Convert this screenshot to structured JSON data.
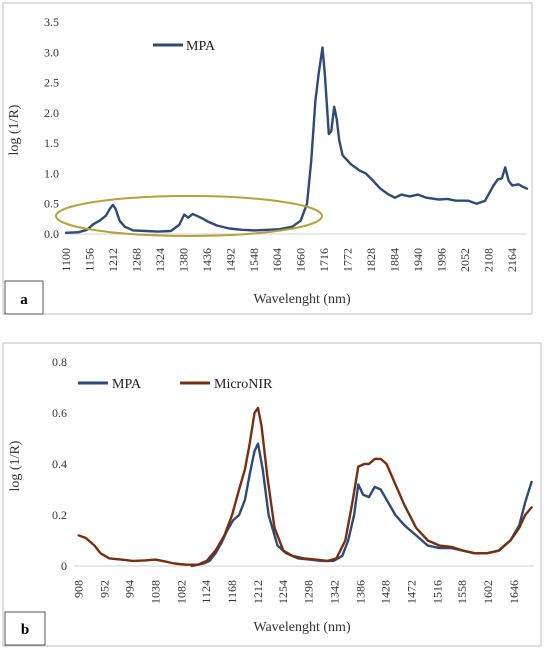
{
  "colors": {
    "mpa": "#2E4A78",
    "micronir": "#7A2E10",
    "ellipse": "#B7A23A",
    "frame": "#BFBFBF",
    "zero_line": "#D0D0D0"
  },
  "chart_data": [
    {
      "panel": "a",
      "type": "line",
      "xlabel": "Wavelenght (nm)",
      "ylabel": "log (1/R)",
      "ylim": [
        0,
        3.5
      ],
      "xlim": [
        1100,
        2200
      ],
      "yticks": [
        "0.0",
        "0.5",
        "1.0",
        "1.5",
        "2.0",
        "2.5",
        "3.0",
        "3.5"
      ],
      "xticks": [
        "1100",
        "1156",
        "1212",
        "1268",
        "1324",
        "1380",
        "1436",
        "1492",
        "1548",
        "1604",
        "1660",
        "1716",
        "1772",
        "1828",
        "1884",
        "1940",
        "1996",
        "2052",
        "2108",
        "2164"
      ],
      "legend": "top-left",
      "series": [
        {
          "name": "MPA",
          "color": "#2E4A78",
          "points": [
            [
              1100,
              0.02
            ],
            [
              1130,
              0.03
            ],
            [
              1150,
              0.07
            ],
            [
              1165,
              0.16
            ],
            [
              1180,
              0.22
            ],
            [
              1195,
              0.3
            ],
            [
              1205,
              0.42
            ],
            [
              1212,
              0.48
            ],
            [
              1218,
              0.42
            ],
            [
              1228,
              0.22
            ],
            [
              1240,
              0.12
            ],
            [
              1260,
              0.06
            ],
            [
              1290,
              0.05
            ],
            [
              1320,
              0.04
            ],
            [
              1350,
              0.05
            ],
            [
              1370,
              0.15
            ],
            [
              1382,
              0.32
            ],
            [
              1392,
              0.27
            ],
            [
              1402,
              0.33
            ],
            [
              1412,
              0.3
            ],
            [
              1425,
              0.26
            ],
            [
              1440,
              0.2
            ],
            [
              1460,
              0.14
            ],
            [
              1490,
              0.09
            ],
            [
              1520,
              0.07
            ],
            [
              1550,
              0.06
            ],
            [
              1580,
              0.07
            ],
            [
              1610,
              0.08
            ],
            [
              1640,
              0.12
            ],
            [
              1660,
              0.22
            ],
            [
              1675,
              0.5
            ],
            [
              1685,
              1.2
            ],
            [
              1695,
              2.2
            ],
            [
              1703,
              2.65
            ],
            [
              1712,
              3.08
            ],
            [
              1718,
              2.6
            ],
            [
              1727,
              1.65
            ],
            [
              1733,
              1.7
            ],
            [
              1740,
              2.1
            ],
            [
              1746,
              1.9
            ],
            [
              1752,
              1.55
            ],
            [
              1760,
              1.3
            ],
            [
              1780,
              1.15
            ],
            [
              1800,
              1.05
            ],
            [
              1815,
              1.0
            ],
            [
              1830,
              0.9
            ],
            [
              1850,
              0.75
            ],
            [
              1870,
              0.65
            ],
            [
              1885,
              0.6
            ],
            [
              1900,
              0.65
            ],
            [
              1920,
              0.62
            ],
            [
              1940,
              0.65
            ],
            [
              1960,
              0.6
            ],
            [
              1990,
              0.57
            ],
            [
              2010,
              0.58
            ],
            [
              2030,
              0.55
            ],
            [
              2060,
              0.55
            ],
            [
              2080,
              0.5
            ],
            [
              2100,
              0.55
            ],
            [
              2120,
              0.8
            ],
            [
              2130,
              0.9
            ],
            [
              2140,
              0.92
            ],
            [
              2148,
              1.1
            ],
            [
              2156,
              0.88
            ],
            [
              2165,
              0.8
            ],
            [
              2180,
              0.82
            ],
            [
              2190,
              0.78
            ],
            [
              2200,
              0.75
            ]
          ]
        }
      ]
    },
    {
      "panel": "b",
      "type": "line",
      "xlabel": "Wavelenght (nm)",
      "ylabel": "log (1/R)",
      "ylim": [
        0,
        0.8
      ],
      "xlim": [
        900,
        1680
      ],
      "yticks": [
        "0",
        "0.2",
        "0.4",
        "0.6",
        "0.8"
      ],
      "xticks": [
        "908",
        "952",
        "994",
        "1038",
        "1082",
        "1124",
        "1168",
        "1212",
        "1254",
        "1298",
        "1342",
        "1386",
        "1428",
        "1472",
        "1516",
        "1558",
        "1602",
        "1646"
      ],
      "legend": "top-left",
      "series": [
        {
          "name": "MPA",
          "color": "#2E4A78",
          "points": [
            [
              1100,
              0.0
            ],
            [
              1120,
              0.01
            ],
            [
              1130,
              0.02
            ],
            [
              1140,
              0.05
            ],
            [
              1150,
              0.09
            ],
            [
              1160,
              0.14
            ],
            [
              1170,
              0.18
            ],
            [
              1180,
              0.2
            ],
            [
              1190,
              0.26
            ],
            [
              1198,
              0.36
            ],
            [
              1206,
              0.45
            ],
            [
              1212,
              0.48
            ],
            [
              1220,
              0.38
            ],
            [
              1230,
              0.2
            ],
            [
              1245,
              0.08
            ],
            [
              1260,
              0.05
            ],
            [
              1280,
              0.03
            ],
            [
              1300,
              0.025
            ],
            [
              1320,
              0.02
            ],
            [
              1340,
              0.02
            ],
            [
              1355,
              0.04
            ],
            [
              1365,
              0.1
            ],
            [
              1375,
              0.2
            ],
            [
              1382,
              0.32
            ],
            [
              1390,
              0.28
            ],
            [
              1400,
              0.27
            ],
            [
              1410,
              0.31
            ],
            [
              1420,
              0.3
            ],
            [
              1430,
              0.26
            ],
            [
              1445,
              0.2
            ],
            [
              1460,
              0.16
            ],
            [
              1480,
              0.12
            ],
            [
              1500,
              0.08
            ],
            [
              1520,
              0.07
            ],
            [
              1540,
              0.07
            ],
            [
              1560,
              0.06
            ],
            [
              1580,
              0.05
            ],
            [
              1600,
              0.05
            ],
            [
              1620,
              0.06
            ],
            [
              1640,
              0.1
            ],
            [
              1655,
              0.16
            ],
            [
              1665,
              0.25
            ],
            [
              1676,
              0.33
            ]
          ]
        },
        {
          "name": "MicroNIR",
          "color": "#7A2E10",
          "points": [
            [
              908,
              0.12
            ],
            [
              920,
              0.11
            ],
            [
              935,
              0.08
            ],
            [
              945,
              0.05
            ],
            [
              960,
              0.03
            ],
            [
              980,
              0.025
            ],
            [
              1000,
              0.02
            ],
            [
              1020,
              0.022
            ],
            [
              1038,
              0.025
            ],
            [
              1050,
              0.02
            ],
            [
              1070,
              0.01
            ],
            [
              1090,
              0.005
            ],
            [
              1110,
              0.005
            ],
            [
              1125,
              0.02
            ],
            [
              1140,
              0.06
            ],
            [
              1155,
              0.12
            ],
            [
              1168,
              0.2
            ],
            [
              1180,
              0.3
            ],
            [
              1190,
              0.38
            ],
            [
              1198,
              0.48
            ],
            [
              1206,
              0.6
            ],
            [
              1212,
              0.62
            ],
            [
              1218,
              0.55
            ],
            [
              1228,
              0.35
            ],
            [
              1240,
              0.15
            ],
            [
              1255,
              0.06
            ],
            [
              1270,
              0.04
            ],
            [
              1290,
              0.03
            ],
            [
              1310,
              0.025
            ],
            [
              1330,
              0.02
            ],
            [
              1345,
              0.03
            ],
            [
              1360,
              0.1
            ],
            [
              1372,
              0.25
            ],
            [
              1382,
              0.39
            ],
            [
              1392,
              0.4
            ],
            [
              1400,
              0.4
            ],
            [
              1410,
              0.42
            ],
            [
              1420,
              0.42
            ],
            [
              1430,
              0.4
            ],
            [
              1445,
              0.32
            ],
            [
              1460,
              0.24
            ],
            [
              1480,
              0.15
            ],
            [
              1500,
              0.1
            ],
            [
              1520,
              0.08
            ],
            [
              1540,
              0.075
            ],
            [
              1560,
              0.06
            ],
            [
              1580,
              0.05
            ],
            [
              1600,
              0.05
            ],
            [
              1620,
              0.06
            ],
            [
              1640,
              0.1
            ],
            [
              1655,
              0.15
            ],
            [
              1665,
              0.2
            ],
            [
              1676,
              0.23
            ]
          ]
        }
      ]
    }
  ]
}
